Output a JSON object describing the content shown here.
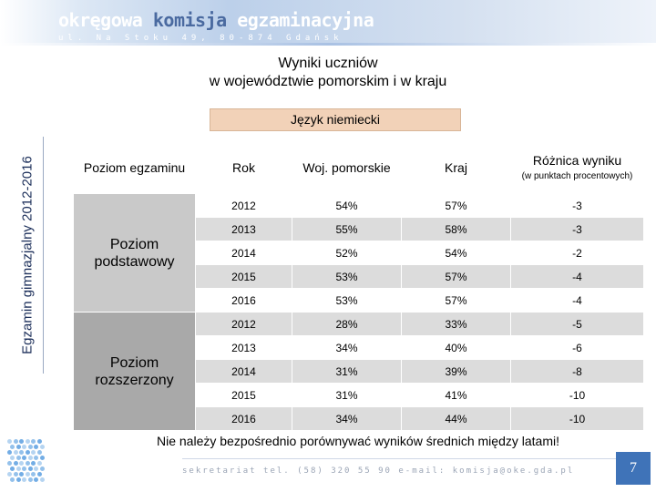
{
  "header": {
    "brand_part1": "okręgowa",
    "brand_part2": "komisja",
    "brand_part3": "egzaminacyjna",
    "address": "ul. Na Stoku 49, 80-874 Gdańsk"
  },
  "side_label": "Egzamin gimnazjalny 2012-2016",
  "title_line1": "Wyniki uczniów",
  "title_line2": "w województwie pomorskim i w kraju",
  "subject": "Język niemiecki",
  "table": {
    "headers": {
      "level": "Poziom egzaminu",
      "year": "Rok",
      "region": "Woj. pomorskie",
      "country": "Kraj",
      "diff": "Różnica wyniku",
      "diff_sub": "(w punktach procentowych)"
    },
    "groups": [
      {
        "label": "Poziom podstawowy",
        "rows": [
          {
            "year": "2012",
            "region": "54%",
            "country": "57%",
            "diff": "-3"
          },
          {
            "year": "2013",
            "region": "55%",
            "country": "58%",
            "diff": "-3"
          },
          {
            "year": "2014",
            "region": "52%",
            "country": "54%",
            "diff": "-2"
          },
          {
            "year": "2015",
            "region": "53%",
            "country": "57%",
            "diff": "-4"
          },
          {
            "year": "2016",
            "region": "53%",
            "country": "57%",
            "diff": "-4"
          }
        ]
      },
      {
        "label": "Poziom rozszerzony",
        "rows": [
          {
            "year": "2012",
            "region": "28%",
            "country": "33%",
            "diff": "-5"
          },
          {
            "year": "2013",
            "region": "34%",
            "country": "40%",
            "diff": "-6"
          },
          {
            "year": "2014",
            "region": "31%",
            "country": "39%",
            "diff": "-8"
          },
          {
            "year": "2015",
            "region": "31%",
            "country": "41%",
            "diff": "-10"
          },
          {
            "year": "2016",
            "region": "34%",
            "country": "44%",
            "diff": "-10"
          }
        ]
      }
    ]
  },
  "note": "Nie należy bezpośrednio porównywać wyników średnich między latami!",
  "footer": "sekretariat tel. (58) 320 55 90 e-mail: komisja@oke.gda.pl",
  "page_number": "7",
  "colors": {
    "brand_blue": "#4a6aa0",
    "subject_box": "#f2d2b8",
    "basic_level_bg": "#c9c9c9",
    "extended_level_bg": "#a9a9a9",
    "page_badge": "#3f73b8"
  },
  "icons": [
    "oke-logo-icon"
  ]
}
